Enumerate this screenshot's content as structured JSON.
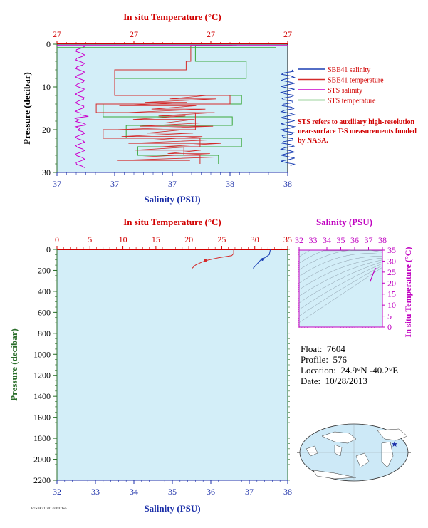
{
  "colors": {
    "panel_bg": "#d3eef8",
    "sbe_salinity": "#1a3fb4",
    "sbe_temperature": "#d42a2a",
    "sts_salinity": "#cc00cc",
    "sts_temperature": "#3aa83a",
    "temp_axis": "#d10000",
    "sal_axis": "#1a2ea8",
    "pressure_axis": "#2a6e2a",
    "ts_axis": "#c000c0"
  },
  "info": {
    "float_label": "Float:",
    "float_value": "7604",
    "profile_label": "Profile:",
    "profile_value": "576",
    "location_label": "Location:",
    "location_value": "24.9°N  -40.2°E",
    "date_label": "Date:",
    "date_value": "10/28/2013"
  },
  "note": "STS refers to auxiliary high-resolution near-surface T-S measurements funded by NASA.",
  "footer_text": "F:\\SBE41\\2013\\0602IS\\\\",
  "chart_data": [
    {
      "id": "near-surface",
      "type": "line",
      "title": "",
      "top_axis_label": "In situ Temperature (°C)",
      "bottom_axis_label": "Salinity (PSU)",
      "left_axis_label": "Pressure (decibar)",
      "top_ticks": [
        "27",
        "27",
        "27",
        "27"
      ],
      "bottom_ticks": [
        "37",
        "37",
        "37",
        "38",
        "38"
      ],
      "left_ticks": [
        "0",
        "10",
        "20",
        "30"
      ],
      "xlim_salinity": [
        37.0,
        38.0
      ],
      "ylim_pressure": [
        30,
        0
      ],
      "legend": [
        "SBE41 salinity",
        "SBE41 temperature",
        "STS salinity",
        "STS temperature"
      ],
      "legend_position": "right",
      "series": [
        {
          "name": "SBE41 salinity",
          "x": [
            38.0,
            37.99,
            38.01,
            38.0,
            37.98,
            38.02,
            38.0,
            38.01,
            37.99,
            38.03
          ],
          "y": [
            7,
            10,
            13,
            15,
            17,
            19,
            22,
            24,
            26,
            28
          ]
        },
        {
          "name": "SBE41 temperature",
          "x_frac": [
            0.76,
            0.58,
            0.56,
            0.25,
            0.75,
            0.17,
            0.6,
            0.2,
            0.62,
            0.55,
            0.62
          ],
          "y": [
            0.3,
            4,
            6,
            12,
            14,
            16,
            20,
            22,
            24,
            26,
            28
          ]
        },
        {
          "name": "STS salinity",
          "x": [
            37.1,
            37.1,
            37.09,
            37.12,
            37.08,
            37.11,
            37.07,
            37.12,
            37.1,
            37.13
          ],
          "y": [
            0.3,
            5,
            10,
            13,
            15,
            17,
            19,
            22,
            25,
            29
          ]
        },
        {
          "name": "STS temperature",
          "x_frac": [
            0.78,
            0.6,
            0.82,
            0.25,
            0.8,
            0.2,
            0.76,
            0.3,
            0.8,
            0.35,
            0.7
          ],
          "y": [
            0.3,
            4,
            8,
            12,
            14,
            17,
            19,
            22,
            24,
            26,
            28
          ]
        }
      ]
    },
    {
      "id": "full-profile",
      "type": "line",
      "top_axis_label": "In situ Temperature (°C)",
      "bottom_axis_label": "Salinity (PSU)",
      "left_axis_label": "Pressure (decibar)",
      "top_ticks": [
        "0",
        "5",
        "10",
        "15",
        "20",
        "25",
        "30",
        "35"
      ],
      "bottom_ticks": [
        "32",
        "33",
        "34",
        "35",
        "36",
        "37",
        "38"
      ],
      "left_ticks": [
        "0",
        "200",
        "400",
        "600",
        "800",
        "1000",
        "1200",
        "1400",
        "1600",
        "1800",
        "2000",
        "2200"
      ],
      "xlim_temperature": [
        0,
        35
      ],
      "xlim_salinity": [
        32,
        38
      ],
      "ylim_pressure": [
        2200,
        0
      ],
      "series": [
        {
          "name": "SBE41 temperature",
          "x": [
            26.8,
            26.8,
            26.5,
            24.5,
            23.0,
            22.0,
            21.0,
            20.5
          ],
          "y": [
            0,
            40,
            60,
            80,
            100,
            120,
            150,
            180
          ]
        },
        {
          "name": "SBE41 salinity",
          "x": [
            37.55,
            37.52,
            37.4,
            37.3,
            37.2,
            37.1
          ],
          "y": [
            0,
            50,
            80,
            100,
            140,
            180
          ]
        }
      ]
    },
    {
      "id": "ts-diagram",
      "type": "line",
      "top_axis_label": "Salinity (PSU)",
      "right_axis_label": "In situ Temperature (°C)",
      "top_ticks": [
        "32",
        "33",
        "34",
        "35",
        "36",
        "37",
        "38"
      ],
      "right_ticks": [
        "0",
        "5",
        "10",
        "15",
        "20",
        "25",
        "30",
        "35"
      ],
      "xlim": [
        32,
        38
      ],
      "ylim": [
        0,
        35
      ],
      "series": [
        {
          "name": "T-S",
          "x": [
            37.1,
            37.2,
            37.35,
            37.5,
            37.55
          ],
          "y": [
            20.5,
            22.0,
            24.5,
            26.5,
            26.8
          ]
        }
      ]
    }
  ]
}
